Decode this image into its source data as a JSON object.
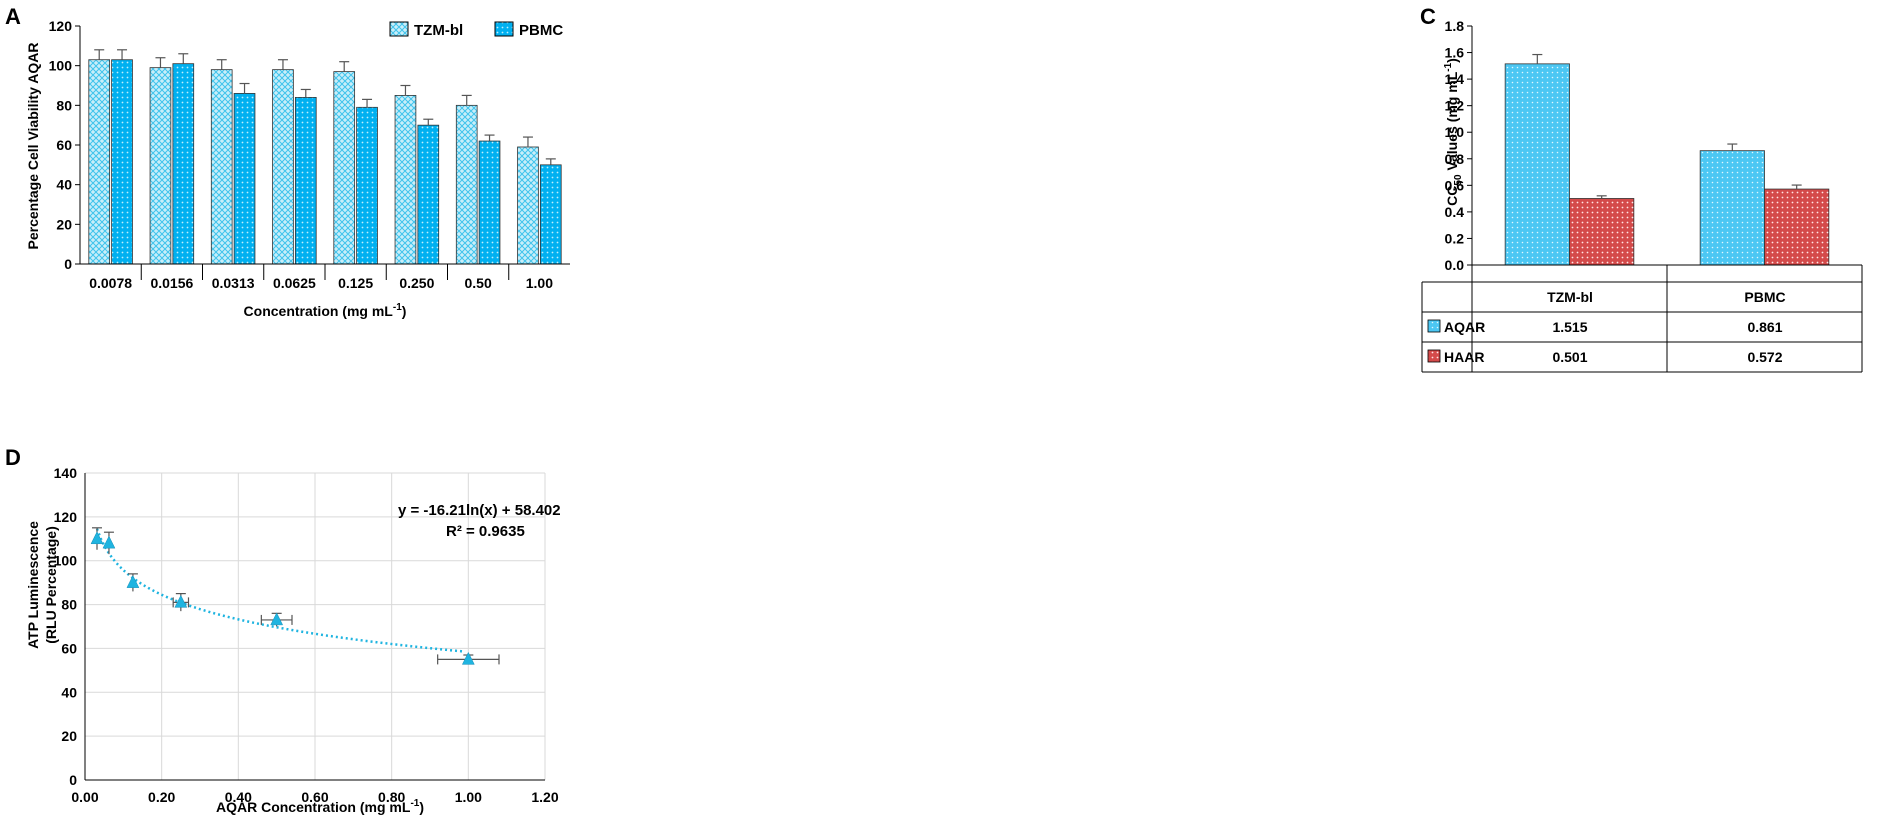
{
  "chart_data": [
    {
      "panel": "A",
      "type": "bar",
      "ylabel": "Percentage Cell Viability AQAR",
      "xlabel": "Concentration (mg mL",
      "xlabel_sup": "-1",
      "xlabel_tail": ")",
      "ylim": [
        0,
        120
      ],
      "yticks": [
        0,
        20,
        40,
        60,
        80,
        100,
        120
      ],
      "categories": [
        "0.0078",
        "0.0156",
        "0.0313",
        "0.0625",
        "0.125",
        "0.250",
        "0.50",
        "1.00"
      ],
      "series": [
        {
          "name": "TZM-bl",
          "values": [
            103,
            99,
            98,
            98,
            97,
            85,
            80,
            59
          ],
          "errors": [
            5,
            5,
            5,
            5,
            5,
            5,
            5,
            5
          ],
          "color": "#3fc3ec"
        },
        {
          "name": "PBMC",
          "values": [
            103,
            101,
            86,
            84,
            79,
            70,
            62,
            50
          ],
          "errors": [
            5,
            5,
            5,
            4,
            4,
            3,
            3,
            3
          ],
          "color": "#00b0f0"
        }
      ]
    },
    {
      "panel": "C",
      "type": "bar",
      "ylabel": "CC50 Values (mg mL-1)",
      "ylim": [
        0,
        1.8
      ],
      "yticks": [
        "0.0",
        "0.2",
        "0.4",
        "0.6",
        "0.8",
        "1.0",
        "1.2",
        "1.4",
        "1.6",
        "1.8"
      ],
      "categories": [
        "TZM-bl",
        "PBMC"
      ],
      "series": [
        {
          "name": "AQAR",
          "values": [
            1.515,
            0.861
          ],
          "labels": [
            "1.515",
            "0.861"
          ],
          "errors": [
            0.07,
            0.05
          ],
          "color": "#00b0f0"
        },
        {
          "name": "HAAR",
          "values": [
            0.501,
            0.572
          ],
          "labels": [
            "0.501",
            "0.572"
          ],
          "errors": [
            0.02,
            0.03
          ],
          "color": "#c00000"
        }
      ]
    },
    {
      "panel": "D",
      "type": "scatter",
      "ylabel1": "ATP Luminescence",
      "ylabel2": "(RLU Percentage)",
      "xlabel": "AQAR Concentration (mg mL",
      "xlabel_sup": "-1",
      "xlabel_tail": ")",
      "xlim": [
        0,
        1.2
      ],
      "ylim": [
        0,
        140
      ],
      "xticks": [
        "0.00",
        "0.20",
        "0.40",
        "0.60",
        "0.80",
        "1.00",
        "1.20"
      ],
      "yticks": [
        0,
        20,
        40,
        60,
        80,
        100,
        120,
        140
      ],
      "x": [
        0.0313,
        0.0625,
        0.125,
        0.25,
        0.5,
        1.0
      ],
      "y": [
        110,
        108,
        90,
        81,
        73,
        55
      ],
      "yerr": [
        5,
        5,
        4,
        4,
        3,
        2
      ],
      "xerr": [
        0.0,
        0.0,
        0.0,
        0.02,
        0.04,
        0.08
      ],
      "fit_a": -16.21,
      "fit_b": 58.402,
      "equation": "y = -16.21ln(x) + 58.402",
      "r2": "R² = 0.9635",
      "color": "#1fb4e0"
    }
  ]
}
